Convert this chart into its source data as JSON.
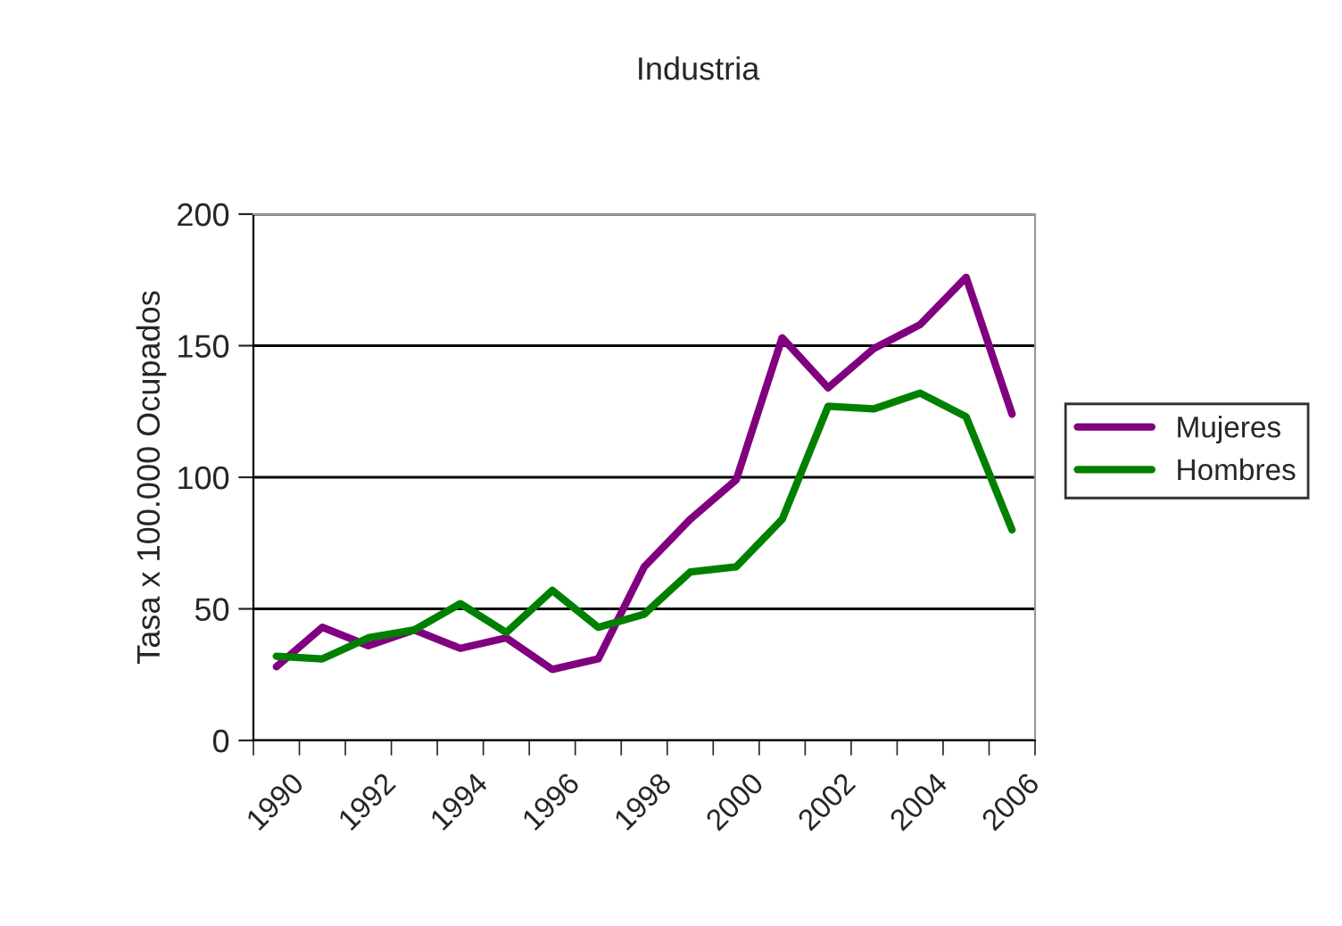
{
  "chart_data": {
    "type": "line",
    "title": "Industria",
    "ylabel": "Tasa x 100.000 Ocupados",
    "categories": [
      "1990",
      null,
      "1992",
      null,
      "1994",
      null,
      "1996",
      null,
      "1998",
      null,
      "2000",
      null,
      "2002",
      null,
      "2004",
      null,
      "2006"
    ],
    "series": [
      {
        "name": "Mujeres",
        "color": "#800080",
        "values": [
          28,
          43,
          36,
          42,
          35,
          39,
          27,
          31,
          66,
          84,
          99,
          153,
          134,
          149,
          158,
          176,
          124
        ]
      },
      {
        "name": "Hombres",
        "color": "#008000",
        "values": [
          32,
          31,
          39,
          42,
          52,
          41,
          57,
          43,
          48,
          64,
          66,
          84,
          127,
          126,
          132,
          123,
          80
        ]
      }
    ],
    "ylim": [
      0,
      200
    ],
    "yticks": [
      0,
      50,
      100,
      150,
      200
    ],
    "grid": "y",
    "legend": "right",
    "marker": "none",
    "line_style": "solid"
  }
}
